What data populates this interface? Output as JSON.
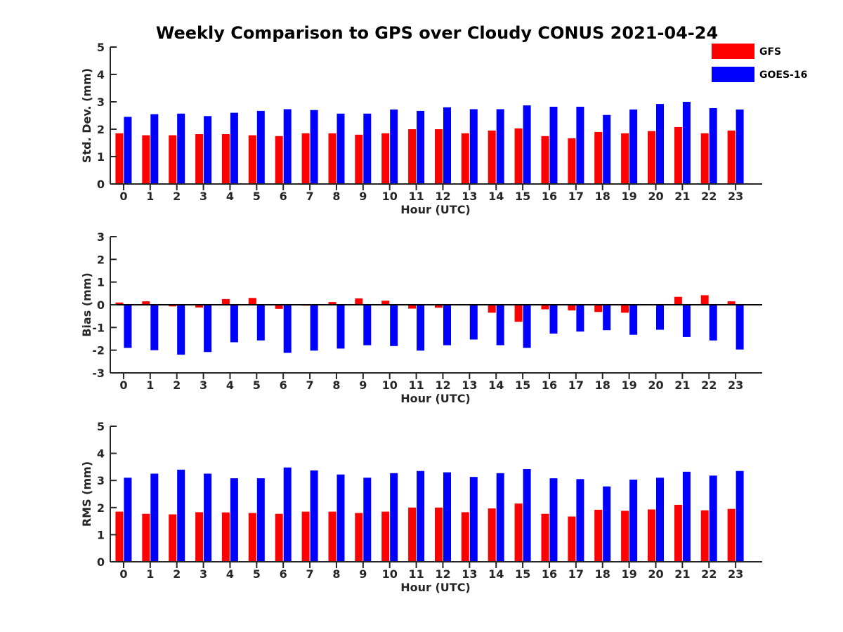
{
  "figure_title": "Weekly Comparison to GPS over Cloudy CONUS 2021-04-24",
  "legend": [
    {
      "label": "GFS",
      "color": "#ff0000"
    },
    {
      "label": "GOES-16",
      "color": "#0000ff"
    }
  ],
  "chart_data": [
    {
      "type": "bar",
      "title": "",
      "xlabel": "Hour (UTC)",
      "ylabel": "Std. Dev. (mm)",
      "categories": [
        "0",
        "1",
        "2",
        "3",
        "4",
        "5",
        "6",
        "7",
        "8",
        "9",
        "10",
        "11",
        "12",
        "13",
        "14",
        "15",
        "16",
        "17",
        "18",
        "19",
        "20",
        "21",
        "22",
        "23"
      ],
      "ylim": [
        0,
        5
      ],
      "yticks": [
        "0",
        "1",
        "2",
        "3",
        "4",
        "5"
      ],
      "series": [
        {
          "name": "GFS",
          "color": "#ff0000",
          "values": [
            1.85,
            1.78,
            1.78,
            1.82,
            1.82,
            1.78,
            1.75,
            1.85,
            1.85,
            1.8,
            1.85,
            2.0,
            2.0,
            1.85,
            1.95,
            2.03,
            1.75,
            1.67,
            1.9,
            1.85,
            1.93,
            2.08,
            1.85,
            1.95
          ]
        },
        {
          "name": "GOES-16",
          "color": "#0000ff",
          "values": [
            2.45,
            2.55,
            2.57,
            2.48,
            2.6,
            2.67,
            2.73,
            2.7,
            2.57,
            2.57,
            2.72,
            2.67,
            2.8,
            2.73,
            2.73,
            2.87,
            2.82,
            2.82,
            2.52,
            2.72,
            2.92,
            3.0,
            2.77,
            2.72
          ]
        }
      ]
    },
    {
      "type": "bar",
      "title": "",
      "xlabel": "Hour (UTC)",
      "ylabel": "Bias (mm)",
      "categories": [
        "0",
        "1",
        "2",
        "3",
        "4",
        "5",
        "6",
        "7",
        "8",
        "9",
        "10",
        "11",
        "12",
        "13",
        "14",
        "15",
        "16",
        "17",
        "18",
        "19",
        "20",
        "21",
        "22",
        "23"
      ],
      "ylim": [
        -3,
        3
      ],
      "yticks": [
        "-3",
        "-2",
        "-1",
        "0",
        "1",
        "2",
        "3"
      ],
      "series": [
        {
          "name": "GFS",
          "color": "#ff0000",
          "values": [
            0.1,
            0.15,
            -0.07,
            -0.12,
            0.25,
            0.3,
            -0.18,
            -0.04,
            0.12,
            0.28,
            0.18,
            -0.17,
            -0.13,
            -0.03,
            -0.35,
            -0.75,
            -0.2,
            -0.25,
            -0.32,
            -0.35,
            0.0,
            0.35,
            0.42,
            0.15
          ]
        },
        {
          "name": "GOES-16",
          "color": "#0000ff",
          "values": [
            -1.9,
            -2.0,
            -2.2,
            -2.08,
            -1.65,
            -1.57,
            -2.12,
            -2.02,
            -1.93,
            -1.78,
            -1.82,
            -2.02,
            -1.78,
            -1.53,
            -1.78,
            -1.9,
            -1.27,
            -1.18,
            -1.12,
            -1.32,
            -1.1,
            -1.42,
            -1.57,
            -1.97
          ]
        }
      ]
    },
    {
      "type": "bar",
      "title": "",
      "xlabel": "Hour (UTC)",
      "ylabel": "RMS (mm)",
      "categories": [
        "0",
        "1",
        "2",
        "3",
        "4",
        "5",
        "6",
        "7",
        "8",
        "9",
        "10",
        "11",
        "12",
        "13",
        "14",
        "15",
        "16",
        "17",
        "18",
        "19",
        "20",
        "21",
        "22",
        "23"
      ],
      "ylim": [
        0,
        5
      ],
      "yticks": [
        "0",
        "1",
        "2",
        "3",
        "4",
        "5"
      ],
      "series": [
        {
          "name": "GFS",
          "color": "#ff0000",
          "values": [
            1.85,
            1.77,
            1.75,
            1.83,
            1.82,
            1.8,
            1.77,
            1.85,
            1.85,
            1.8,
            1.85,
            2.0,
            2.0,
            1.83,
            1.97,
            2.15,
            1.77,
            1.67,
            1.92,
            1.88,
            1.93,
            2.1,
            1.9,
            1.95
          ]
        },
        {
          "name": "GOES-16",
          "color": "#0000ff",
          "values": [
            3.1,
            3.25,
            3.4,
            3.25,
            3.08,
            3.08,
            3.48,
            3.37,
            3.22,
            3.1,
            3.27,
            3.35,
            3.3,
            3.13,
            3.27,
            3.42,
            3.08,
            3.05,
            2.78,
            3.03,
            3.1,
            3.32,
            3.18,
            3.35
          ]
        }
      ]
    }
  ]
}
